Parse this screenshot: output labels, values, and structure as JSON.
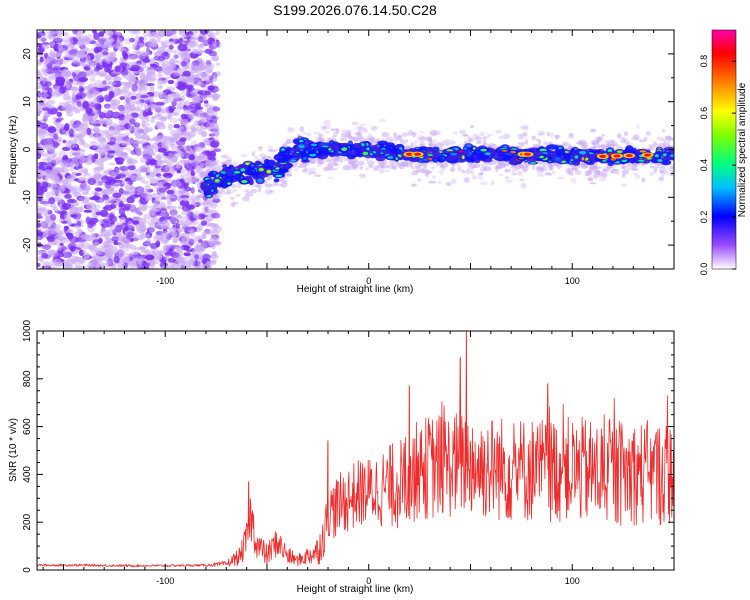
{
  "title": "S199.2026.076.14.50.C28",
  "chart_data": [
    {
      "type": "heatmap",
      "xlabel": "Height of straight line (km)",
      "ylabel": "Frequency (Hz)",
      "xlim": [
        -163,
        150
      ],
      "ylim": [
        -25,
        25
      ],
      "xticks": [
        -100,
        0,
        100
      ],
      "yticks": [
        -20,
        -10,
        0,
        10,
        20
      ],
      "colorbar": {
        "label": "Normalized spectral amplitude",
        "range": [
          0,
          0.92
        ],
        "ticks": [
          0.0,
          0.2,
          0.4,
          0.6,
          0.8
        ],
        "tick_labels": [
          "0.0",
          "0.2",
          "0.4",
          "0.6",
          "0.8"
        ],
        "colors": [
          "#ffffff",
          "#8a2be2",
          "#0000ff",
          "#00ffff",
          "#00ff00",
          "#ffff00",
          "#ff8000",
          "#ff0000",
          "#ff00ff"
        ]
      },
      "noise_region": {
        "x": [
          -163,
          -80
        ],
        "freq": [
          -25,
          25
        ],
        "amplitude": [
          0.0,
          0.15
        ]
      },
      "signal_trace": [
        {
          "x": -80,
          "freq": -8
        },
        {
          "x": -70,
          "freq": -6
        },
        {
          "x": -60,
          "freq": -5
        },
        {
          "x": -45,
          "freq": -4
        },
        {
          "x": -35,
          "freq": 0
        },
        {
          "x": -20,
          "freq": 0
        },
        {
          "x": 0,
          "freq": 0
        },
        {
          "x": 20,
          "freq": -1
        },
        {
          "x": 50,
          "freq": -1
        },
        {
          "x": 80,
          "freq": -1
        },
        {
          "x": 110,
          "freq": -1.5
        },
        {
          "x": 150,
          "freq": -1
        }
      ]
    },
    {
      "type": "line",
      "xlabel": "Height of straight line (km)",
      "ylabel": "SNR (10 * v/v)",
      "xlim": [
        -163,
        150
      ],
      "ylim": [
        0,
        1000
      ],
      "xticks": [
        -100,
        0,
        100
      ],
      "yticks": [
        0,
        200,
        400,
        600,
        800,
        1000
      ],
      "color": "#ee2a2a",
      "series": [
        {
          "name": "SNR",
          "x": [
            -163,
            -140,
            -120,
            -100,
            -80,
            -70,
            -63,
            -60,
            -58,
            -55,
            -50,
            -45,
            -40,
            -35,
            -30,
            -25,
            -22,
            -20,
            -18,
            -15,
            -10,
            -5,
            0,
            5,
            10,
            15,
            18,
            20,
            25,
            30,
            40,
            50,
            55,
            60,
            70,
            80,
            90,
            100,
            110,
            120,
            130,
            140,
            150
          ],
          "y": [
            20,
            20,
            18,
            18,
            20,
            25,
            60,
            130,
            230,
            110,
            60,
            120,
            60,
            40,
            60,
            80,
            150,
            220,
            250,
            270,
            300,
            320,
            330,
            340,
            350,
            360,
            380,
            400,
            420,
            430,
            440,
            450,
            430,
            430,
            420,
            420,
            420,
            420,
            410,
            400,
            410,
            400,
            410
          ],
          "noise_amplitude": [
            3,
            3,
            3,
            3,
            3,
            8,
            25,
            45,
            70,
            40,
            30,
            40,
            25,
            15,
            25,
            40,
            60,
            70,
            80,
            80,
            90,
            90,
            90,
            100,
            110,
            120,
            130,
            130,
            130,
            140,
            140,
            140,
            140,
            140,
            140,
            140,
            140,
            140,
            140,
            140,
            140,
            140,
            140
          ],
          "peaks": [
            {
              "x": -59,
              "y": 370
            },
            {
              "x": -20,
              "y": 540
            },
            {
              "x": 20,
              "y": 770
            },
            {
              "x": 45,
              "y": 890
            },
            {
              "x": 48,
              "y": 1000
            },
            {
              "x": 88,
              "y": 780
            }
          ]
        }
      ]
    }
  ]
}
